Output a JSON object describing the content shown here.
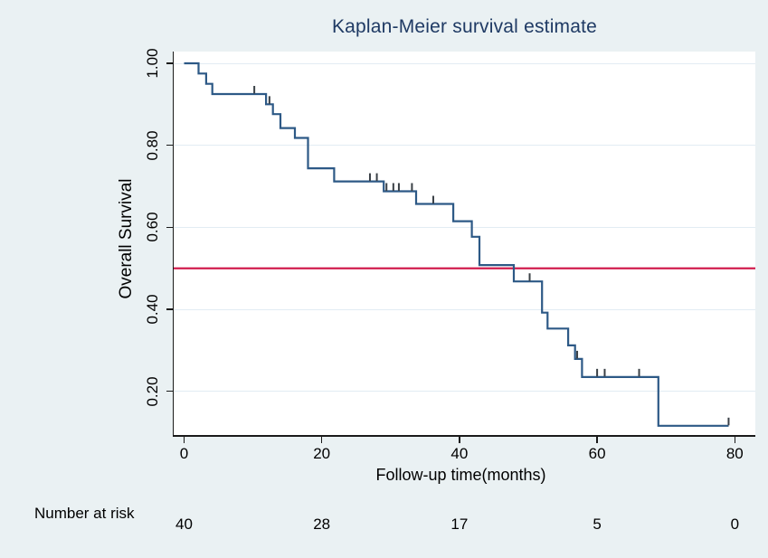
{
  "title": "Kaplan-Meier survival estimate",
  "axes": {
    "y_label": "Overall Survival",
    "x_label": "Follow-up time(months)",
    "y_ticks": [
      {
        "label": "1.00",
        "value": 1.0
      },
      {
        "label": "0.80",
        "value": 0.8
      },
      {
        "label": "0.60",
        "value": 0.6
      },
      {
        "label": "0.40",
        "value": 0.4
      },
      {
        "label": "0.20",
        "value": 0.2
      }
    ],
    "x_ticks": [
      {
        "label": "0",
        "value": 0
      },
      {
        "label": "20",
        "value": 20
      },
      {
        "label": "40",
        "value": 40
      },
      {
        "label": "60",
        "value": 60
      },
      {
        "label": "80",
        "value": 80
      }
    ]
  },
  "chart_data": {
    "type": "line",
    "subtype": "kaplan-meier-step",
    "title": "Kaplan-Meier survival estimate",
    "xlabel": "Follow-up time(months)",
    "ylabel": "Overall Survival",
    "xlim": [
      0,
      83
    ],
    "ylim": [
      0.1,
      1.02
    ],
    "grid": "horizontal-at-y-ticks",
    "legend_position": "none",
    "reference_line": {
      "y": 0.5
    },
    "series": [
      {
        "name": "Overall Survival",
        "steps": [
          [
            0.0,
            1.0
          ],
          [
            2.1,
            0.975
          ],
          [
            3.2,
            0.95
          ],
          [
            4.1,
            0.925
          ],
          [
            11.9,
            0.9
          ],
          [
            12.9,
            0.876
          ],
          [
            14.0,
            0.842
          ],
          [
            16.1,
            0.818
          ],
          [
            18.0,
            0.744
          ],
          [
            21.8,
            0.712
          ],
          [
            29.0,
            0.688
          ],
          [
            33.7,
            0.657
          ],
          [
            39.1,
            0.615
          ],
          [
            41.8,
            0.577
          ],
          [
            42.9,
            0.508
          ],
          [
            47.9,
            0.468
          ],
          [
            52.0,
            0.392
          ],
          [
            52.8,
            0.353
          ],
          [
            55.8,
            0.312
          ],
          [
            56.8,
            0.279
          ],
          [
            57.8,
            0.235
          ],
          [
            68.9,
            0.116
          ]
        ],
        "end_time": 79.1,
        "censor_marks": [
          [
            10.2,
            0.925
          ],
          [
            12.4,
            0.9
          ],
          [
            27.0,
            0.712
          ],
          [
            28.0,
            0.712
          ],
          [
            29.4,
            0.688
          ],
          [
            30.4,
            0.688
          ],
          [
            31.2,
            0.688
          ],
          [
            33.1,
            0.688
          ],
          [
            36.2,
            0.657
          ],
          [
            50.2,
            0.468
          ],
          [
            57.1,
            0.279
          ],
          [
            60.0,
            0.235
          ],
          [
            61.1,
            0.235
          ],
          [
            66.1,
            0.235
          ],
          [
            79.1,
            0.116
          ]
        ]
      }
    ],
    "number_at_risk": {
      "label": "Number at risk",
      "times": [
        0,
        20,
        40,
        60,
        80
      ],
      "counts": [
        "40",
        "28",
        "17",
        "5",
        "0"
      ]
    }
  },
  "colors": {
    "background": "#eaf1f3",
    "plot_background": "#ffffff",
    "gridline": "#e2ecf3",
    "axis": "#1a1a1a",
    "curve": "#2d5986",
    "censor_tick": "#3a4046",
    "reference_line": "#cf1145",
    "title_text": "#1f3a64",
    "label_text": "#000000"
  }
}
